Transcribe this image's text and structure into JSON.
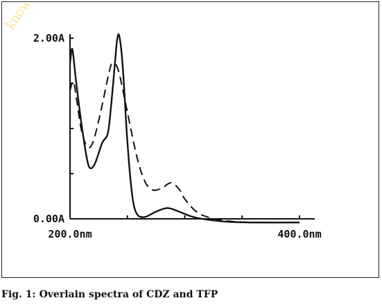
{
  "caption": "Fig. 1: Overlain spectra of CDZ and TFP",
  "watermark": "know",
  "chart_data": {
    "type": "line",
    "title": "",
    "xlabel": "",
    "ylabel": "",
    "xlim": [
      200,
      400
    ],
    "ylim": [
      0,
      2
    ],
    "x_tick_labels": [
      {
        "value": 200,
        "label": "200.0nm"
      },
      {
        "value": 400,
        "label": "400.0nm"
      }
    ],
    "y_tick_labels": [
      {
        "value": 0,
        "label": "0.00A"
      },
      {
        "value": 2,
        "label": "2.00A"
      }
    ],
    "series": [
      {
        "style": "solid",
        "points": [
          [
            200,
            1.72
          ],
          [
            202,
            1.88
          ],
          [
            205,
            1.55
          ],
          [
            210,
            1.05
          ],
          [
            215,
            0.65
          ],
          [
            218,
            0.56
          ],
          [
            222,
            0.62
          ],
          [
            228,
            0.84
          ],
          [
            233,
            0.95
          ],
          [
            236,
            1.28
          ],
          [
            239,
            1.7
          ],
          [
            241,
            1.98
          ],
          [
            243,
            2.02
          ],
          [
            246,
            1.68
          ],
          [
            250,
            0.85
          ],
          [
            254,
            0.28
          ],
          [
            258,
            0.06
          ],
          [
            265,
            0.02
          ],
          [
            275,
            0.08
          ],
          [
            285,
            0.12
          ],
          [
            295,
            0.08
          ],
          [
            305,
            0.03
          ],
          [
            315,
            0.0
          ],
          [
            335,
            -0.03
          ],
          [
            360,
            -0.04
          ],
          [
            400,
            -0.04
          ]
        ]
      },
      {
        "style": "dashed",
        "points": [
          [
            200,
            1.42
          ],
          [
            203,
            1.52
          ],
          [
            206,
            1.3
          ],
          [
            210,
            0.98
          ],
          [
            215,
            0.8
          ],
          [
            220,
            0.85
          ],
          [
            227,
            1.2
          ],
          [
            234,
            1.62
          ],
          [
            237,
            1.72
          ],
          [
            242,
            1.65
          ],
          [
            250,
            1.18
          ],
          [
            258,
            0.7
          ],
          [
            265,
            0.42
          ],
          [
            272,
            0.32
          ],
          [
            280,
            0.34
          ],
          [
            288,
            0.4
          ],
          [
            295,
            0.33
          ],
          [
            300,
            0.22
          ],
          [
            310,
            0.08
          ],
          [
            320,
            0.02
          ],
          [
            335,
            -0.02
          ],
          [
            360,
            -0.04
          ],
          [
            400,
            -0.04
          ]
        ]
      }
    ],
    "grid": false,
    "legend": "none"
  }
}
